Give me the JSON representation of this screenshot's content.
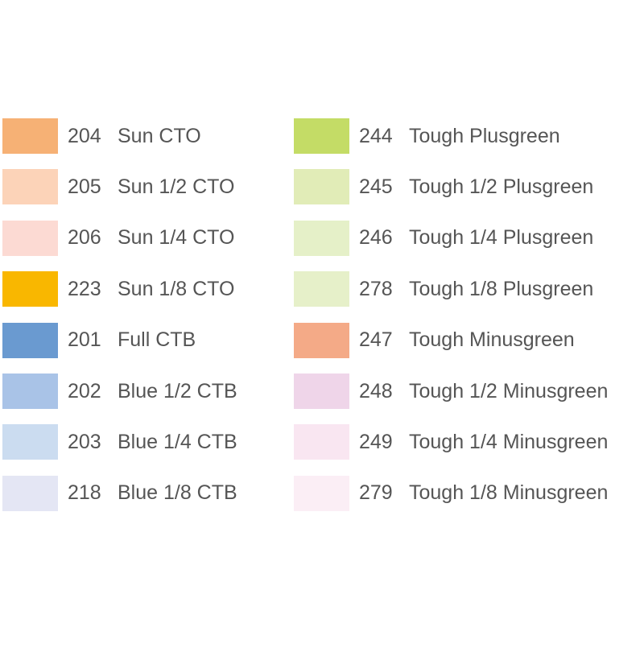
{
  "columns": [
    {
      "items": [
        {
          "code": "204",
          "name": "Sun CTO",
          "color": "#f6b175"
        },
        {
          "code": "205",
          "name": "Sun 1/2 CTO",
          "color": "#fcd3b8"
        },
        {
          "code": "206",
          "name": "Sun 1/4 CTO",
          "color": "#fcdad3"
        },
        {
          "code": "223",
          "name": "Sun 1/8 CTO",
          "color": "#f9b700"
        },
        {
          "code": "201",
          "name": "Full CTB",
          "color": "#6a9ad0"
        },
        {
          "code": "202",
          "name": "Blue 1/2 CTB",
          "color": "#a9c3e7"
        },
        {
          "code": "203",
          "name": "Blue 1/4 CTB",
          "color": "#cbdcf0"
        },
        {
          "code": "218",
          "name": "Blue 1/8 CTB",
          "color": "#e4e6f4"
        }
      ]
    },
    {
      "items": [
        {
          "code": "244",
          "name": "Tough Plusgreen",
          "color": "#c4dc66"
        },
        {
          "code": "245",
          "name": "Tough 1/2 Plusgreen",
          "color": "#e1ecb7"
        },
        {
          "code": "246",
          "name": "Tough 1/4 Plusgreen",
          "color": "#e5f0c8"
        },
        {
          "code": "278",
          "name": "Tough 1/8 Plusgreen",
          "color": "#e6f0c9"
        },
        {
          "code": "247",
          "name": "Tough Minusgreen",
          "color": "#f4aa87"
        },
        {
          "code": "248",
          "name": "Tough 1/2 Minusgreen",
          "color": "#efd5e9"
        },
        {
          "code": "249",
          "name": "Tough 1/4 Minusgreen",
          "color": "#f9e6f1"
        },
        {
          "code": "279",
          "name": "Tough 1/8 Minusgreen",
          "color": "#fbeef5"
        }
      ]
    }
  ]
}
